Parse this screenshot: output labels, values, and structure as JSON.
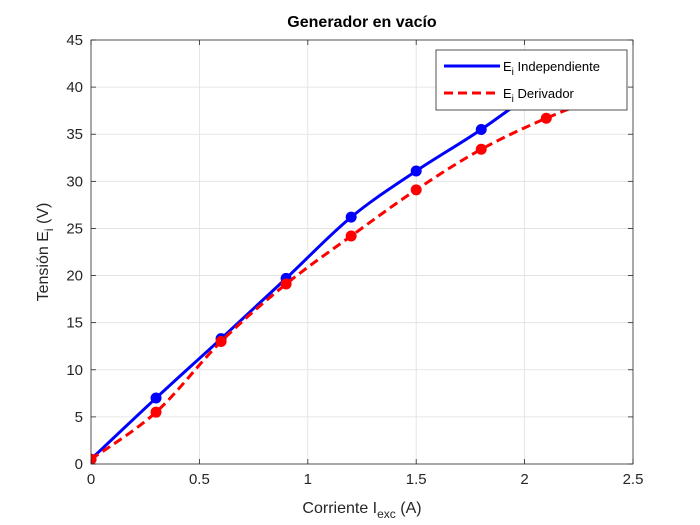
{
  "chart_data": {
    "type": "line",
    "title": "Generador en vacío",
    "xlabel": {
      "main": "Corriente I",
      "sub": "exc",
      "unit": " (A)"
    },
    "ylabel": {
      "main": "Tensión E",
      "sub": "i",
      "unit": "  (V)"
    },
    "xlim": [
      0,
      2.5
    ],
    "ylim": [
      0,
      45
    ],
    "xticks": [
      0,
      0.5,
      1,
      1.5,
      2,
      2.5
    ],
    "xtick_labels": [
      "0",
      "0.5",
      "1",
      "1.5",
      "2",
      "2.5"
    ],
    "yticks": [
      0,
      5,
      10,
      15,
      20,
      25,
      30,
      35,
      40,
      45
    ],
    "ytick_labels": [
      "0",
      "5",
      "10",
      "15",
      "20",
      "25",
      "30",
      "35",
      "40",
      "45"
    ],
    "grid": true,
    "legend_position": "top-right",
    "series": [
      {
        "name": {
          "main": "E",
          "sub": "i",
          "rest": " Independiente"
        },
        "color": "#0000ff",
        "line_style": "solid",
        "x": [
          0,
          0.3,
          0.6,
          0.9,
          1.2,
          1.5,
          1.8,
          2.1
        ],
        "y": [
          0.5,
          7.0,
          13.3,
          19.7,
          26.2,
          31.1,
          35.5,
          40.5
        ]
      },
      {
        "name": {
          "main": "E",
          "sub": "i",
          "rest": " Derivador"
        },
        "color": "#ff0000",
        "line_style": "dashed",
        "x": [
          0,
          0.3,
          0.6,
          0.9,
          1.2,
          1.5,
          1.8,
          2.1,
          2.4
        ],
        "y": [
          0.5,
          5.5,
          13.0,
          19.1,
          24.2,
          29.1,
          33.4,
          36.7,
          39.4
        ]
      }
    ]
  }
}
